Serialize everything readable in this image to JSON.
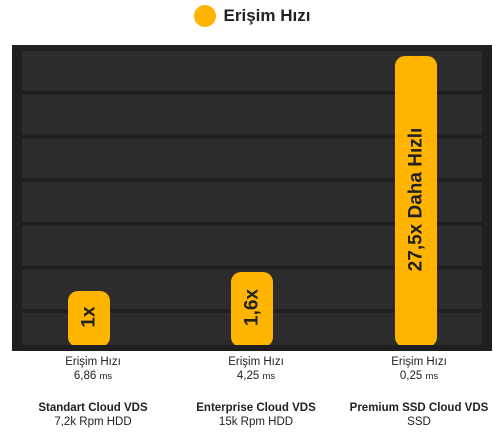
{
  "legend": {
    "label": "Erişim Hızı",
    "color": "#FFB400"
  },
  "colors": {
    "plot_bg": "#1f1f1f",
    "grid": "#2c2c2c",
    "bar": "#FFB400",
    "bar_label": "#222222"
  },
  "chart_data": {
    "type": "bar",
    "title": "",
    "series": [
      {
        "name": "Erişim Hızı",
        "values": [
          1,
          1.6,
          27.5
        ]
      }
    ],
    "categories": [
      "Standart Cloud VDS",
      "Enterprise Cloud VDS",
      "Premium SSD Cloud VDS"
    ],
    "bar_labels": [
      "1x",
      "1,6x",
      "27,5x Daha Hızlı"
    ],
    "grid": true,
    "legend_position": "top-center"
  },
  "categories": [
    {
      "metric": "Erişim Hızı",
      "value": "6,86",
      "unit": "ms",
      "name": "Standart Cloud VDS",
      "sub": "7,2k Rpm HDD"
    },
    {
      "metric": "Erişim Hızı",
      "value": "4,25",
      "unit": "ms",
      "name": "Enterprise Cloud VDS",
      "sub": "15k Rpm HDD"
    },
    {
      "metric": "Erişim Hızı",
      "value": "0,25",
      "unit": "ms",
      "name": "Premium SSD Cloud VDS",
      "sub": "SSD"
    }
  ]
}
